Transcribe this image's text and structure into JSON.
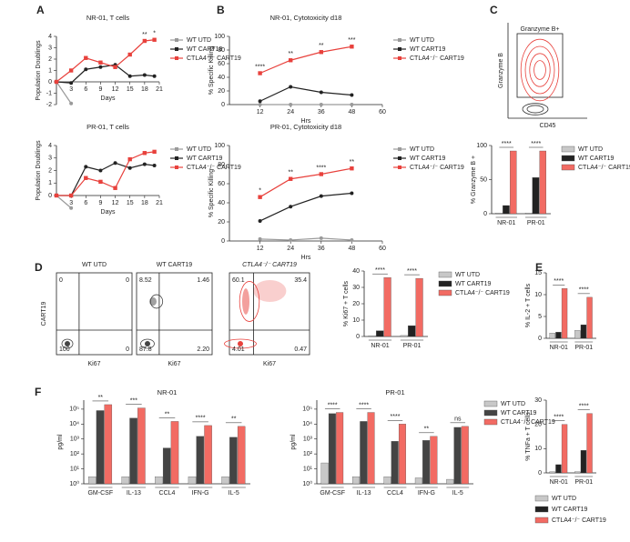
{
  "panels": [
    "A",
    "B",
    "C",
    "D",
    "E",
    "F"
  ],
  "chart_data": [
    {
      "type": "line",
      "title": "NR-01, T cells",
      "xlabel": "Days",
      "ylabel": "Population Doublings",
      "x": [
        0,
        3,
        6,
        9,
        12,
        15,
        18,
        20
      ],
      "xlim": [
        0,
        21
      ],
      "xticks": [
        3,
        6,
        9,
        12,
        15,
        18,
        21
      ],
      "ylim": [
        -2,
        4
      ],
      "yticks": [
        -2,
        -1,
        0,
        1,
        2,
        3,
        4
      ],
      "legend": "right",
      "series": [
        {
          "name": "WT UTD",
          "color": "#9a9a9a",
          "marker": "circle",
          "values": [
            0,
            -1.9,
            null,
            null,
            null,
            null,
            null,
            null
          ]
        },
        {
          "name": "WT CART19",
          "color": "#222222",
          "marker": "circle",
          "values": [
            0,
            -0.1,
            1.1,
            1.3,
            1.5,
            0.5,
            0.6,
            0.5
          ]
        },
        {
          "name": "CTLA4⁻/⁻ CART19",
          "color": "#e8413c",
          "marker": "square",
          "values": [
            0,
            1,
            2.1,
            1.7,
            1.3,
            2.4,
            3.6,
            3.7
          ]
        }
      ],
      "significance": [
        null,
        null,
        null,
        null,
        null,
        null,
        "**",
        "*"
      ]
    },
    {
      "type": "line",
      "title": "PR-01, T cells",
      "xlabel": "Days",
      "ylabel": "Population Doublings",
      "x": [
        0,
        3,
        6,
        9,
        12,
        15,
        18,
        20
      ],
      "xlim": [
        0,
        21
      ],
      "xticks": [
        3,
        6,
        9,
        12,
        15,
        18,
        21
      ],
      "ylim": [
        0,
        4
      ],
      "yticks": [
        0,
        1,
        2,
        3,
        4
      ],
      "legend": "right",
      "series": [
        {
          "name": "WT UTD",
          "color": "#9a9a9a",
          "marker": "circle",
          "values": [
            0,
            -1,
            null,
            null,
            null,
            null,
            null,
            null
          ]
        },
        {
          "name": "WT CART19",
          "color": "#222222",
          "marker": "circle",
          "values": [
            0,
            0,
            2.3,
            2.0,
            2.6,
            2.2,
            2.5,
            2.4
          ]
        },
        {
          "name": "CTLA4⁻/⁻ CART19",
          "color": "#e8413c",
          "marker": "square",
          "values": [
            0,
            0,
            1.4,
            1.1,
            0.6,
            2.9,
            3.4,
            3.5
          ]
        }
      ]
    },
    {
      "type": "line",
      "title": "NR-01, Cytotoxicity d18",
      "xlabel": "Hrs",
      "ylabel": "% Specific Killing",
      "x": [
        12,
        24,
        36,
        48
      ],
      "xlim": [
        0,
        60
      ],
      "xticks": [
        12,
        24,
        36,
        48,
        60
      ],
      "ylim": [
        0,
        100
      ],
      "yticks": [
        0,
        20,
        40,
        60,
        80,
        100
      ],
      "legend": "right",
      "series": [
        {
          "name": "WT UTD",
          "color": "#9a9a9a",
          "marker": "circle",
          "values": [
            0,
            0,
            0,
            0
          ]
        },
        {
          "name": "WT CART19",
          "color": "#222222",
          "marker": "circle",
          "values": [
            5,
            26,
            18,
            14
          ]
        },
        {
          "name": "CTLA4⁻/⁻ CART19",
          "color": "#e8413c",
          "marker": "square",
          "values": [
            46,
            65,
            77,
            85
          ]
        }
      ],
      "significance": [
        "****",
        "**",
        "**",
        "***"
      ]
    },
    {
      "type": "line",
      "title": "PR-01, Cytotoxicity d18",
      "xlabel": "Hrs",
      "ylabel": "% Specific Killing",
      "x": [
        12,
        24,
        36,
        48
      ],
      "xlim": [
        0,
        60
      ],
      "xticks": [
        12,
        24,
        36,
        48,
        60
      ],
      "ylim": [
        0,
        100
      ],
      "yticks": [
        0,
        20,
        40,
        60,
        80,
        100
      ],
      "legend": "right",
      "series": [
        {
          "name": "WT UTD",
          "color": "#9a9a9a",
          "marker": "circle",
          "values": [
            2,
            1,
            3,
            1
          ]
        },
        {
          "name": "WT CART19",
          "color": "#222222",
          "marker": "circle",
          "values": [
            21,
            36,
            47,
            50
          ]
        },
        {
          "name": "CTLA4⁻/⁻ CART19",
          "color": "#e8413c",
          "marker": "square",
          "values": [
            46,
            65,
            70,
            76
          ]
        }
      ],
      "significance": [
        "*",
        "**",
        "****",
        "**"
      ]
    },
    {
      "type": "gate",
      "gate_label": "Granzyme B+",
      "xlabel": "CD45",
      "ylabel": "Granzyme B",
      "color": "#e8413c"
    },
    {
      "type": "bar",
      "ylabel": "% Granzyme B +",
      "categories": [
        "NR-01",
        "PR-01"
      ],
      "ylim": [
        0,
        100
      ],
      "yticks": [
        0,
        50,
        100
      ],
      "legend": "right",
      "series": [
        {
          "name": "WT UTD",
          "color": "#c8c8c8",
          "values": [
            1,
            1
          ]
        },
        {
          "name": "WT CART19",
          "color": "#222222",
          "values": [
            12,
            53
          ]
        },
        {
          "name": "CTLA4⁻/⁻ CART19",
          "color": "#f26b63",
          "values": [
            92,
            92
          ]
        }
      ],
      "significance": [
        "****",
        "****"
      ]
    },
    {
      "type": "flow",
      "title": "WT UTD",
      "ylabel": "CART19",
      "xlabel": "Ki67",
      "color": "#444444",
      "values": [
        0,
        0,
        100,
        0
      ]
    },
    {
      "type": "flow",
      "title": "WT CART19",
      "xlabel": "Ki67",
      "color": "#444444",
      "values": [
        8.52,
        1.46,
        87.8,
        2.2
      ],
      "value_labels": [
        "8.52",
        "1.46",
        "87.8",
        "2.20"
      ]
    },
    {
      "type": "flow",
      "title": "CTLA4⁻/⁻ CART19",
      "title_style": "italic",
      "xlabel": "Ki67",
      "color": "#e8413c",
      "values": [
        60.1,
        35.4,
        4.01,
        0.47
      ]
    },
    {
      "type": "bar",
      "ylabel": "% Ki67 + T cells",
      "categories": [
        "NR-01",
        "PR-01"
      ],
      "ylim": [
        0,
        40
      ],
      "yticks": [
        0,
        10,
        20,
        30,
        40
      ],
      "legend": "right",
      "series": [
        {
          "name": "WT UTD",
          "color": "#c8c8c8",
          "values": [
            0.5,
            0.6
          ]
        },
        {
          "name": "WT CART19",
          "color": "#222222",
          "values": [
            3.5,
            6.6
          ]
        },
        {
          "name": "CTLA4⁻/⁻ CART19",
          "color": "#f26b63",
          "values": [
            36,
            35.5
          ]
        }
      ],
      "significance": [
        "****",
        "****"
      ]
    },
    {
      "type": "bar",
      "ylabel": "% IL-2 + T cells",
      "categories": [
        "NR-01",
        "PR-01"
      ],
      "ylim": [
        0,
        15
      ],
      "yticks": [
        0,
        5,
        10,
        15
      ],
      "series": [
        {
          "color": "#c8c8c8",
          "values": [
            1.2,
            1.8
          ]
        },
        {
          "color": "#222222",
          "values": [
            1.4,
            3.1
          ]
        },
        {
          "color": "#f26b63",
          "values": [
            11.4,
            9.4
          ]
        }
      ],
      "significance": [
        "****",
        "****"
      ]
    },
    {
      "type": "bar",
      "ylabel": "% TNFa + T cells",
      "categories": [
        "NR-01",
        "PR-01"
      ],
      "ylim": [
        0,
        30
      ],
      "yticks": [
        0,
        10,
        20,
        30
      ],
      "legend": "bottom",
      "series": [
        {
          "name": "WT UTD",
          "color": "#c8c8c8",
          "values": [
            0.5,
            0.5
          ]
        },
        {
          "name": "WT CART19",
          "color": "#222222",
          "values": [
            3.4,
            9.3
          ]
        },
        {
          "name": "CTLA4⁻/⁻ CART19",
          "color": "#f26b63",
          "values": [
            20,
            24.5
          ]
        }
      ],
      "significance": [
        "****",
        "****"
      ]
    },
    {
      "type": "bar",
      "title": "NR-01",
      "ylabel": "pg/ml",
      "log": true,
      "categories": [
        "GM-CSF",
        "IL-13",
        "CCL4",
        "IFN-G",
        "IL-5"
      ],
      "ylim": [
        1,
        400000
      ],
      "yticks": [
        {
          "value": 1,
          "label": "10⁰"
        },
        {
          "value": 10,
          "label": "10¹"
        },
        {
          "value": 100,
          "label": "10²"
        },
        {
          "value": 1000,
          "label": "10³"
        },
        {
          "value": 10000,
          "label": "10⁴"
        },
        {
          "value": 100000,
          "label": "10⁵"
        }
      ],
      "series": [
        {
          "color": "#c8c8c8",
          "values": [
            3,
            3,
            3,
            3,
            3
          ]
        },
        {
          "color": "#444444",
          "values": [
            80000,
            25000,
            250,
            1500,
            1300
          ]
        },
        {
          "color": "#f26b63",
          "values": [
            200000,
            120000,
            15000,
            8000,
            7000
          ]
        }
      ],
      "significance": [
        "**",
        "***",
        "**",
        "****",
        "**"
      ]
    },
    {
      "type": "bar",
      "title": "PR-01",
      "ylabel": "pg/ml",
      "log": true,
      "categories": [
        "GM-CSF",
        "IL-13",
        "CCL4",
        "IFN-G",
        "IL-5"
      ],
      "ylim": [
        1,
        400000
      ],
      "yticks": [
        {
          "value": 1,
          "label": "10⁰"
        },
        {
          "value": 10,
          "label": "10¹"
        },
        {
          "value": 100,
          "label": "10²"
        },
        {
          "value": 1000,
          "label": "10³"
        },
        {
          "value": 10000,
          "label": "10⁴"
        },
        {
          "value": 100000,
          "label": "10⁵"
        }
      ],
      "legend": "right",
      "series": [
        {
          "name": "WT UTD",
          "color": "#c8c8c8",
          "values": [
            25,
            3,
            3,
            2.5,
            2
          ]
        },
        {
          "name": "WT CART19",
          "color": "#444444",
          "values": [
            50000,
            15000,
            700,
            800,
            6000
          ]
        },
        {
          "name": "CTLA4⁻/⁻ CART19",
          "color": "#f26b63",
          "values": [
            60000,
            60000,
            10000,
            1500,
            7000
          ]
        }
      ],
      "significance": [
        "****",
        "****",
        "****",
        "**",
        "ns"
      ]
    }
  ]
}
